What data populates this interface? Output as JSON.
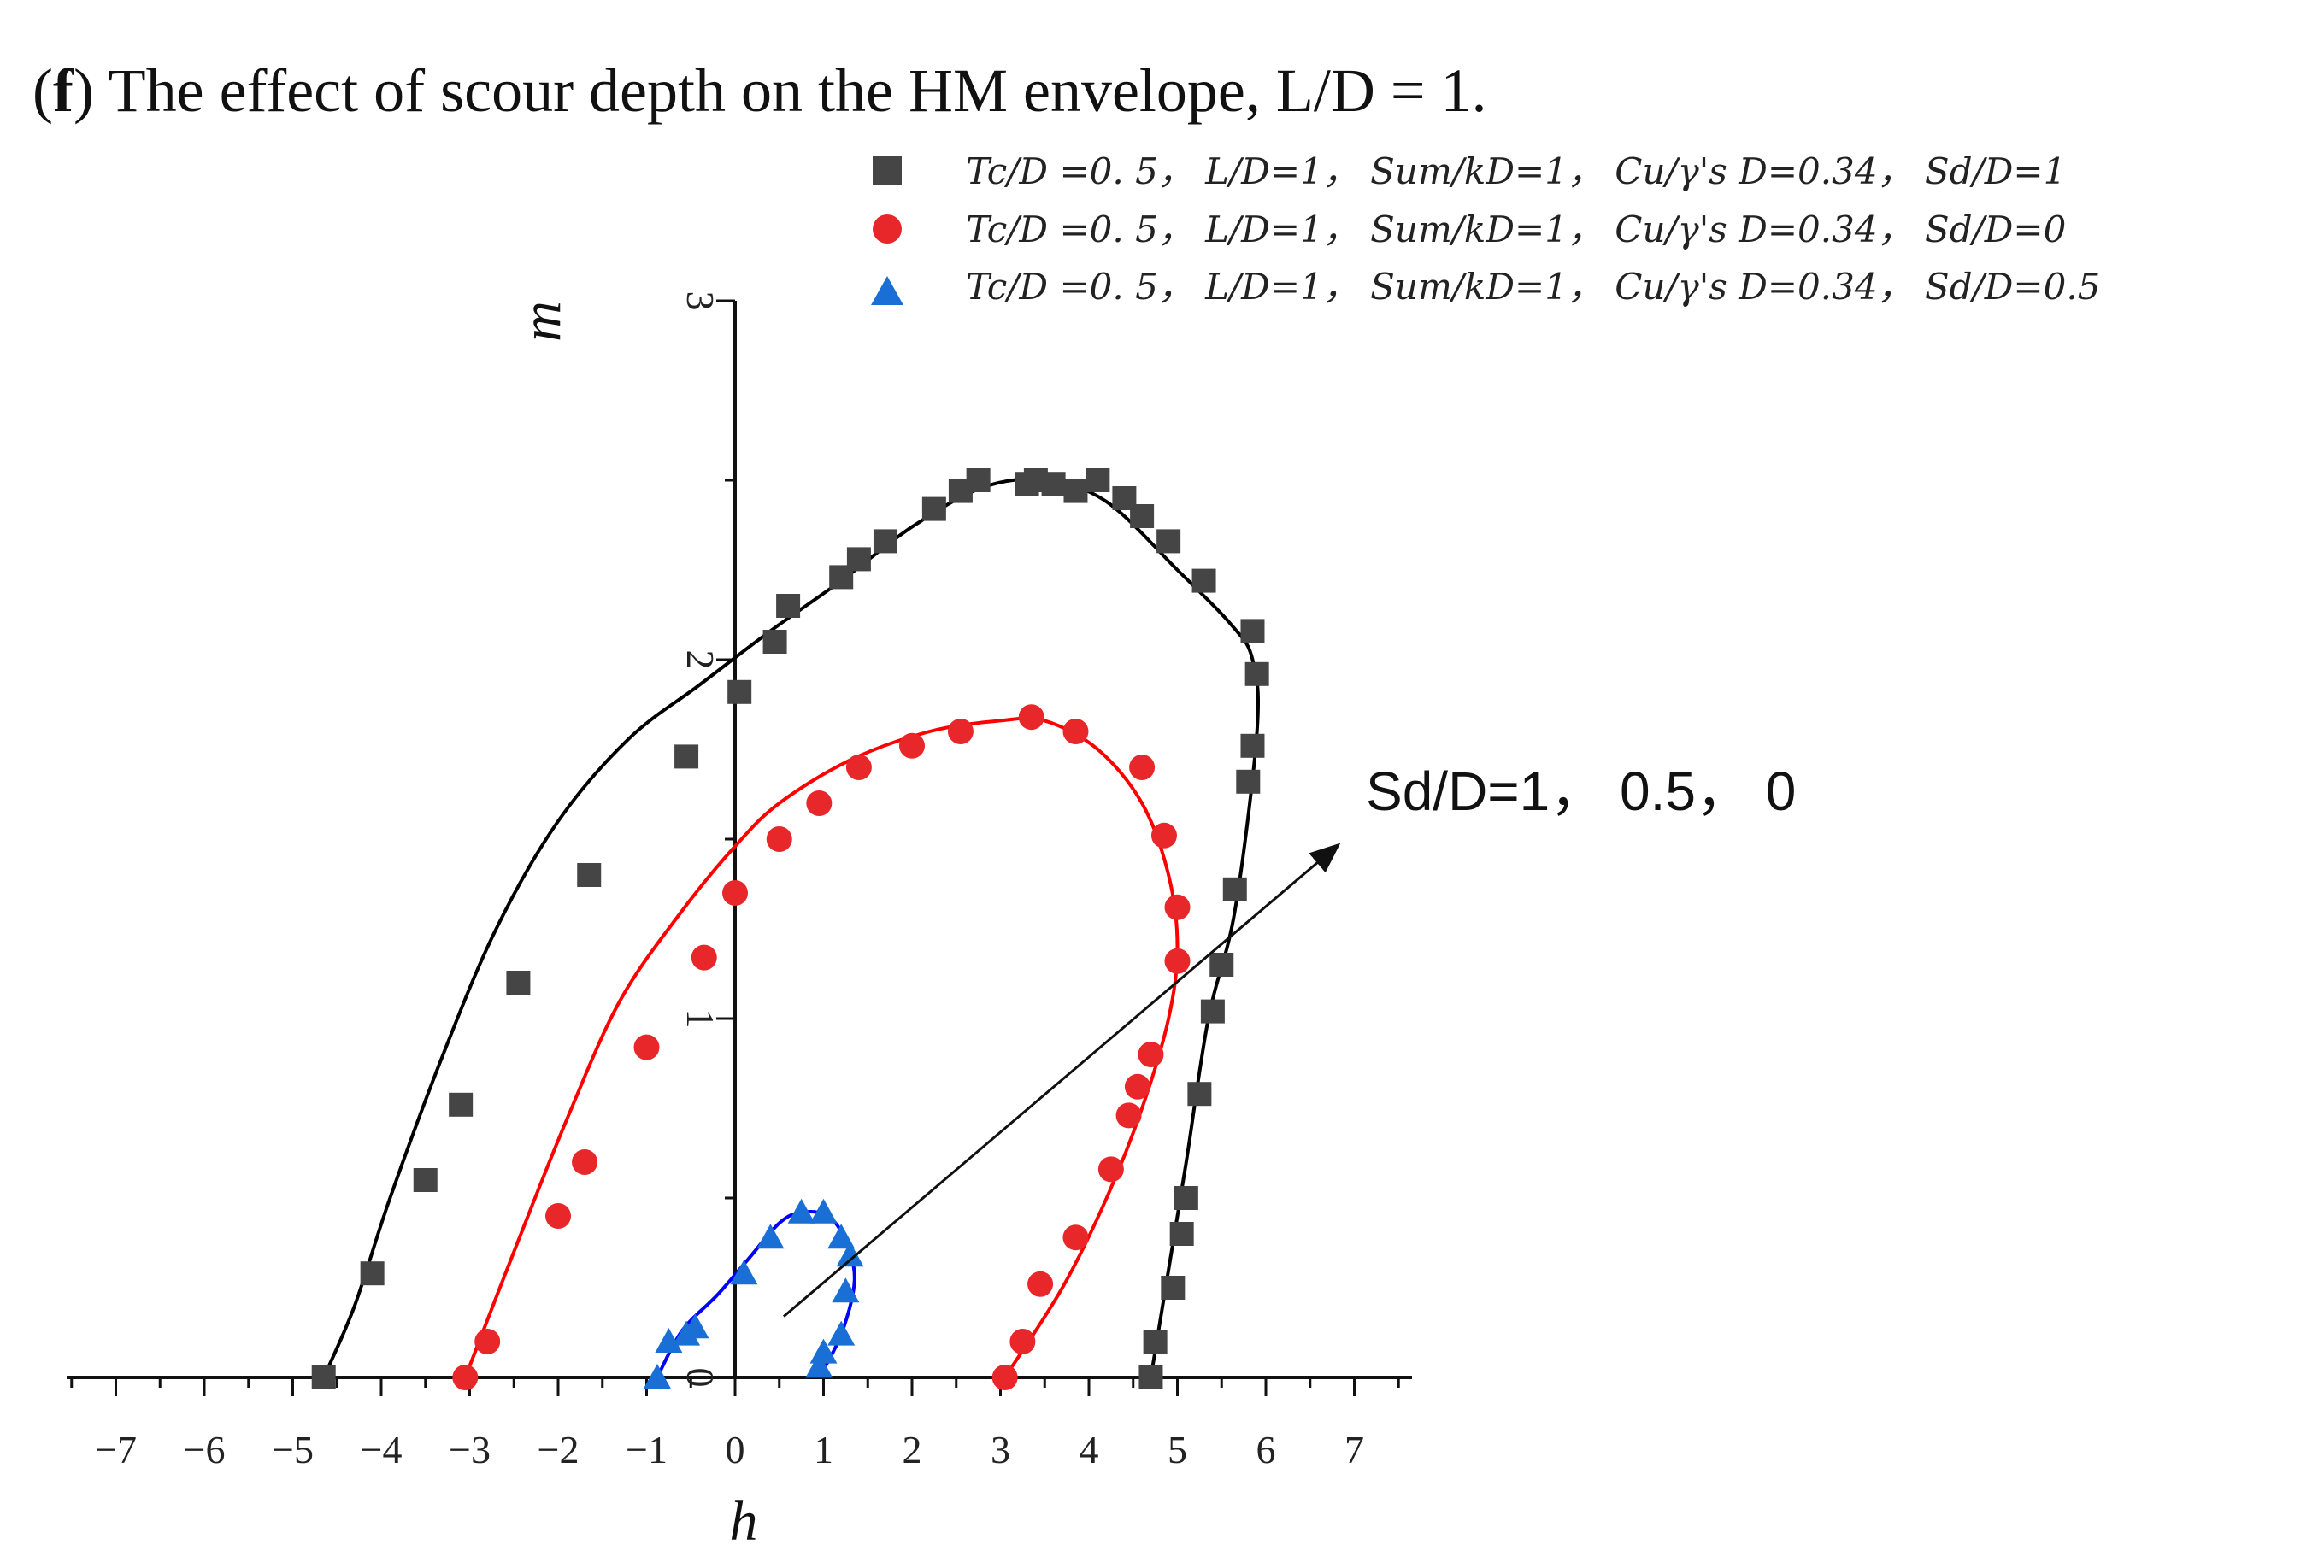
{
  "chart_data": {
    "type": "line",
    "title": "The effect of scour depth on the HM envelope, L/D = 1.",
    "title_prefix": "f",
    "xlabel": "h",
    "ylabel": "m",
    "xlim": [
      -7.5,
      7.5
    ],
    "ylim": [
      0,
      3
    ],
    "x_ticks": [
      "−7",
      "−6",
      "−5",
      "−4",
      "−3",
      "−2",
      "−1",
      "0",
      "1",
      "2",
      "3",
      "4",
      "5",
      "6",
      "7"
    ],
    "y_ticks": [
      "0",
      "1",
      "2",
      "3"
    ],
    "grid": false,
    "legend_position": "top-right",
    "annotation": {
      "text": "Sd/D=1， 0.5， 0",
      "arrow_from": [
        0.55,
        0.17
      ],
      "arrow_to": [
        6.8,
        1.48
      ]
    },
    "series": [
      {
        "name": "Tc/D =0. 5， L/D=1， Sum/kD=1， Cu/γ's D=0.34， Sd/D=1",
        "color": "#454545",
        "marker": "square",
        "curve": [
          [
            -4.65,
            0
          ],
          [
            -4.3,
            0.2
          ],
          [
            -3.9,
            0.5
          ],
          [
            -3.3,
            0.9
          ],
          [
            -2.7,
            1.25
          ],
          [
            -2.0,
            1.55
          ],
          [
            -1.2,
            1.78
          ],
          [
            -0.4,
            1.93
          ],
          [
            0.4,
            2.08
          ],
          [
            1.2,
            2.22
          ],
          [
            2.0,
            2.37
          ],
          [
            2.8,
            2.48
          ],
          [
            3.5,
            2.5
          ],
          [
            4.2,
            2.44
          ],
          [
            5.0,
            2.25
          ],
          [
            5.6,
            2.1
          ],
          [
            5.85,
            2.0
          ],
          [
            5.9,
            1.8
          ],
          [
            5.65,
            1.3
          ],
          [
            5.35,
            1.0
          ],
          [
            5.1,
            0.6
          ],
          [
            4.9,
            0.3
          ],
          [
            4.7,
            0
          ]
        ],
        "points": [
          [
            -4.65,
            0
          ],
          [
            -4.1,
            0.29
          ],
          [
            -3.5,
            0.55
          ],
          [
            -3.1,
            0.76
          ],
          [
            -2.45,
            1.1
          ],
          [
            -1.65,
            1.4
          ],
          [
            -0.55,
            1.73
          ],
          [
            0.05,
            1.91
          ],
          [
            0.45,
            2.05
          ],
          [
            0.6,
            2.15
          ],
          [
            1.2,
            2.23
          ],
          [
            1.4,
            2.28
          ],
          [
            1.7,
            2.33
          ],
          [
            2.25,
            2.42
          ],
          [
            2.55,
            2.47
          ],
          [
            2.75,
            2.5
          ],
          [
            3.3,
            2.49
          ],
          [
            3.4,
            2.5
          ],
          [
            3.6,
            2.49
          ],
          [
            3.85,
            2.47
          ],
          [
            4.1,
            2.5
          ],
          [
            4.4,
            2.45
          ],
          [
            4.6,
            2.4
          ],
          [
            4.9,
            2.33
          ],
          [
            5.3,
            2.22
          ],
          [
            5.85,
            2.08
          ],
          [
            5.9,
            1.96
          ],
          [
            5.85,
            1.76
          ],
          [
            5.8,
            1.66
          ],
          [
            5.65,
            1.36
          ],
          [
            5.5,
            1.15
          ],
          [
            5.4,
            1.02
          ],
          [
            5.25,
            0.79
          ],
          [
            5.1,
            0.5
          ],
          [
            5.05,
            0.4
          ],
          [
            4.95,
            0.25
          ],
          [
            4.75,
            0.1
          ],
          [
            4.7,
            0
          ]
        ]
      },
      {
        "name": "Tc/D =0. 5， L/D=1， Sum/kD=1， Cu/γ's D=0.34， Sd/D=0",
        "color": "#e8272a",
        "marker": "circle",
        "curve": [
          [
            -3.05,
            0
          ],
          [
            -2.5,
            0.35
          ],
          [
            -1.9,
            0.72
          ],
          [
            -1.3,
            1.05
          ],
          [
            -0.6,
            1.3
          ],
          [
            0.0,
            1.48
          ],
          [
            0.5,
            1.6
          ],
          [
            1.3,
            1.72
          ],
          [
            2.2,
            1.8
          ],
          [
            3.0,
            1.83
          ],
          [
            3.5,
            1.83
          ],
          [
            4.1,
            1.75
          ],
          [
            4.6,
            1.6
          ],
          [
            4.9,
            1.4
          ],
          [
            5.0,
            1.2
          ],
          [
            4.9,
            1.0
          ],
          [
            4.6,
            0.75
          ],
          [
            4.2,
            0.5
          ],
          [
            3.7,
            0.25
          ],
          [
            3.05,
            0
          ]
        ],
        "points": [
          [
            -3.05,
            0
          ],
          [
            -2.8,
            0.1
          ],
          [
            -2.0,
            0.45
          ],
          [
            -1.7,
            0.6
          ],
          [
            -1.0,
            0.92
          ],
          [
            -0.35,
            1.17
          ],
          [
            0.0,
            1.35
          ],
          [
            0.5,
            1.5
          ],
          [
            0.95,
            1.6
          ],
          [
            1.4,
            1.7
          ],
          [
            2.0,
            1.76
          ],
          [
            2.55,
            1.8
          ],
          [
            3.35,
            1.84
          ],
          [
            3.85,
            1.8
          ],
          [
            4.6,
            1.7
          ],
          [
            4.85,
            1.51
          ],
          [
            5.0,
            1.31
          ],
          [
            5.0,
            1.16
          ],
          [
            4.7,
            0.9
          ],
          [
            4.55,
            0.81
          ],
          [
            4.45,
            0.73
          ],
          [
            4.25,
            0.58
          ],
          [
            3.85,
            0.39
          ],
          [
            3.45,
            0.26
          ],
          [
            3.25,
            0.1
          ],
          [
            3.05,
            0
          ]
        ]
      },
      {
        "name": "Tc/D =0. 5， L/D=1， Sum/kD=1， Cu/γ's D=0.34， Sd/D=0.5",
        "color": "#1a6fd6",
        "marker": "triangle",
        "curve": [
          [
            -0.88,
            0
          ],
          [
            -0.6,
            0.13
          ],
          [
            -0.2,
            0.23
          ],
          [
            0.15,
            0.33
          ],
          [
            0.5,
            0.43
          ],
          [
            0.75,
            0.46
          ],
          [
            1.05,
            0.45
          ],
          [
            1.25,
            0.38
          ],
          [
            1.35,
            0.27
          ],
          [
            1.2,
            0.12
          ],
          [
            0.95,
            0
          ]
        ],
        "points": [
          [
            -0.88,
            0
          ],
          [
            -0.75,
            0.1
          ],
          [
            -0.55,
            0.12
          ],
          [
            -0.45,
            0.14
          ],
          [
            0.1,
            0.29
          ],
          [
            0.4,
            0.39
          ],
          [
            0.75,
            0.46
          ],
          [
            1.0,
            0.46
          ],
          [
            1.2,
            0.39
          ],
          [
            1.3,
            0.34
          ],
          [
            1.25,
            0.24
          ],
          [
            1.2,
            0.12
          ],
          [
            1.0,
            0.07
          ],
          [
            0.95,
            0.03
          ]
        ]
      }
    ]
  }
}
